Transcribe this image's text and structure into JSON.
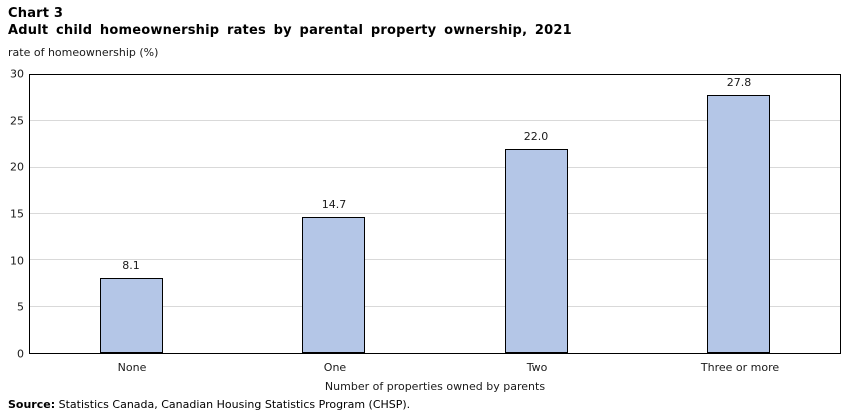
{
  "header": {
    "chart_label": "Chart 3",
    "title": "Adult child homeownership rates by parental property ownership, 2021",
    "unit_label": "rate of homeownership (%)"
  },
  "chart_data": {
    "type": "bar",
    "categories": [
      "None",
      "One",
      "Two",
      "Three or more"
    ],
    "values": [
      8.1,
      14.7,
      22.0,
      27.8
    ],
    "value_labels": [
      "8.1",
      "14.7",
      "22.0",
      "27.8"
    ],
    "title": "Adult child homeownership rates by parental property ownership, 2021",
    "xlabel": "Number of properties owned by parents",
    "ylabel": "rate of homeownership (%)",
    "ylim": [
      0,
      30
    ],
    "ytick_step": 5,
    "grid": true,
    "legend": "none",
    "colors": {
      "bar_fill": "#b4c6e7",
      "bar_border": "#000000",
      "gridline": "#d9d9d9",
      "plot_border": "#000000"
    }
  },
  "footer": {
    "source_label": "Source:",
    "source_text": " Statistics Canada, Canadian Housing Statistics Program (CHSP)."
  }
}
